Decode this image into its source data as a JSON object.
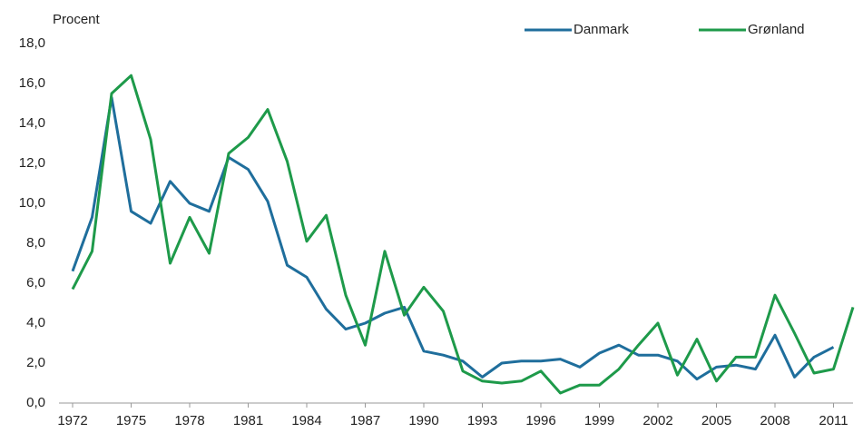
{
  "chart_data": {
    "type": "line",
    "y_label": "Procent",
    "x": [
      1972,
      1973,
      1974,
      1975,
      1976,
      1977,
      1978,
      1979,
      1980,
      1981,
      1982,
      1983,
      1984,
      1985,
      1986,
      1987,
      1988,
      1989,
      1990,
      1991,
      1992,
      1993,
      1994,
      1995,
      1996,
      1997,
      1998,
      1999,
      2000,
      2001,
      2002,
      2003,
      2004,
      2005,
      2006,
      2007,
      2008,
      2009,
      2010,
      2011,
      2012
    ],
    "series": [
      {
        "name": "Danmark",
        "color": "#1f6e9c",
        "values": [
          6.6,
          9.3,
          15.3,
          9.6,
          9.0,
          11.1,
          10.0,
          9.6,
          12.3,
          11.7,
          10.1,
          6.9,
          6.3,
          4.7,
          3.7,
          4.0,
          4.5,
          4.8,
          2.6,
          2.4,
          2.1,
          1.3,
          2.0,
          2.1,
          2.1,
          2.2,
          1.8,
          2.5,
          2.9,
          2.4,
          2.4,
          2.1,
          1.2,
          1.8,
          1.9,
          1.7,
          3.4,
          1.3,
          2.3,
          2.8,
          null
        ]
      },
      {
        "name": "Grønland",
        "color": "#1e9a4a",
        "values": [
          5.7,
          7.6,
          15.5,
          16.4,
          13.2,
          7.0,
          9.3,
          7.5,
          12.5,
          13.3,
          14.7,
          12.1,
          8.1,
          9.4,
          5.4,
          2.9,
          7.6,
          4.4,
          5.8,
          4.6,
          1.6,
          1.1,
          1.0,
          1.1,
          1.6,
          0.5,
          0.9,
          0.9,
          1.7,
          2.9,
          4.0,
          1.4,
          3.2,
          1.1,
          2.3,
          2.3,
          5.4,
          3.5,
          1.5,
          1.7,
          4.8
        ]
      }
    ],
    "xlim": [
      1972,
      2012
    ],
    "xticks": [
      1972,
      1975,
      1978,
      1981,
      1984,
      1987,
      1990,
      1993,
      1996,
      1999,
      2002,
      2005,
      2008,
      2011
    ],
    "ylim": [
      0,
      18
    ],
    "yticks": [
      {
        "value": 0,
        "label": "0,0"
      },
      {
        "value": 2,
        "label": "2,0"
      },
      {
        "value": 4,
        "label": "4,0"
      },
      {
        "value": 6,
        "label": "6,0"
      },
      {
        "value": 8,
        "label": "8,0"
      },
      {
        "value": 10,
        "label": "10,0"
      },
      {
        "value": 12,
        "label": "12,0"
      },
      {
        "value": 14,
        "label": "14,0"
      },
      {
        "value": 16,
        "label": "16,0"
      },
      {
        "value": 18,
        "label": "18,0"
      }
    ],
    "grid": false,
    "legend": "upper right"
  }
}
